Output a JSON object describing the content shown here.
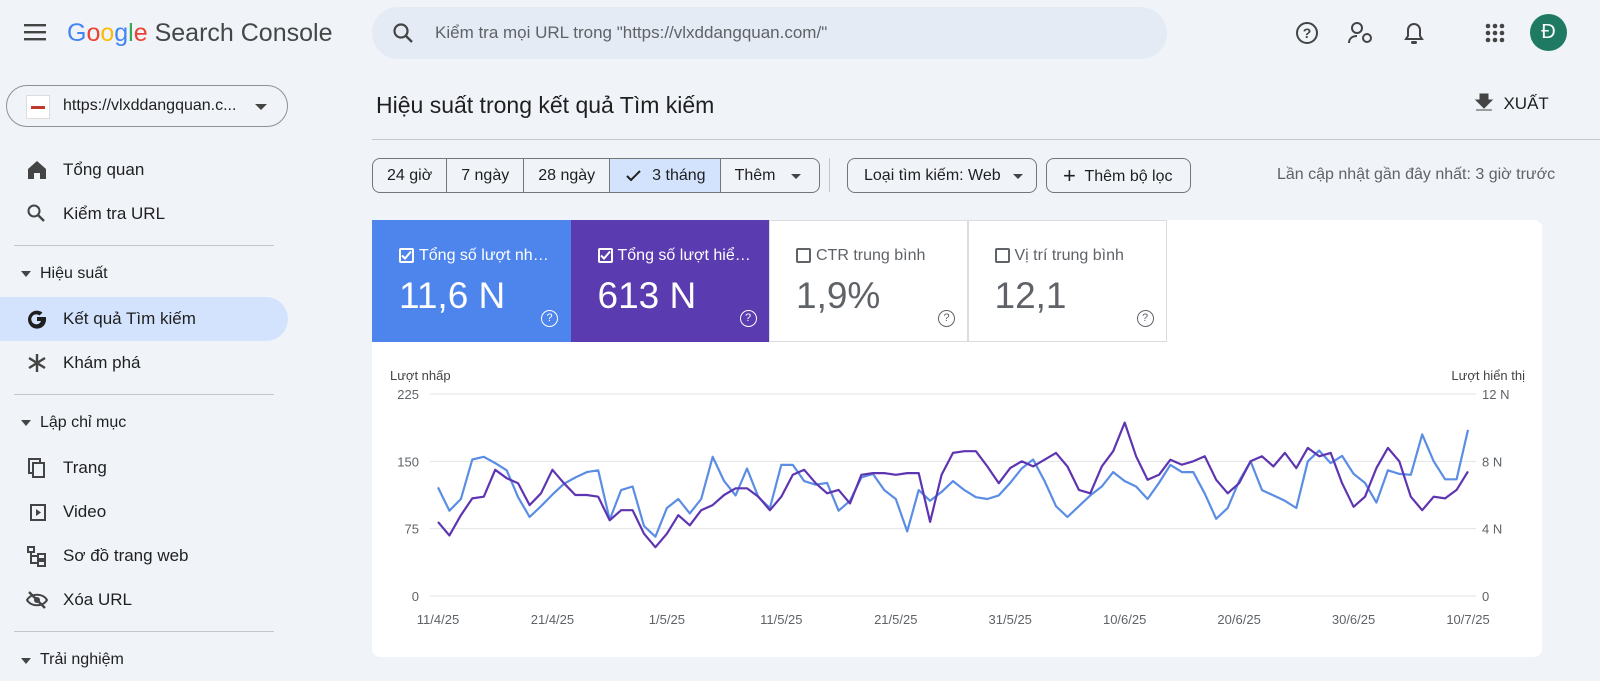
{
  "header": {
    "brand": "Google",
    "product": "Search Console",
    "search_placeholder": "Kiểm tra mọi URL trong \"https://vlxddangquan.com/\"",
    "avatar": "Đ"
  },
  "sidebar": {
    "property": "https://vlxddangquan.c...",
    "top_items": [
      "Tổng quan",
      "Kiểm tra URL"
    ],
    "sections": [
      {
        "title": "Hiệu suất",
        "items": [
          "Kết quả Tìm kiếm",
          "Khám phá"
        ]
      },
      {
        "title": "Lập chỉ mục",
        "items": [
          "Trang",
          "Video",
          "Sơ đồ trang web",
          "Xóa URL"
        ]
      },
      {
        "title": "Trải nghiệm"
      }
    ]
  },
  "page": {
    "title": "Hiệu suất trong kết quả Tìm kiếm",
    "export": "XUẤT",
    "date_ranges": [
      "24 giờ",
      "7 ngày",
      "28 ngày",
      "3 tháng"
    ],
    "more": "Thêm",
    "search_type": "Loại tìm kiếm: Web",
    "add_filter": "Thêm bộ lọc",
    "last_updated": "Lần cập nhật gần đây nhất: 3 giờ trước"
  },
  "metrics": [
    {
      "label": "Tổng số lượt nh…",
      "value": "11,6 N"
    },
    {
      "label": "Tổng số lượt hiể…",
      "value": "613 N"
    },
    {
      "label": "CTR trung bình",
      "value": "1,9%"
    },
    {
      "label": "Vị trí trung bình",
      "value": "12,1"
    }
  ],
  "chart_data": {
    "type": "line",
    "y_label": "Lượt nhấp",
    "y2_label": "Lượt hiển thị",
    "categories": [
      "11/4/25",
      null,
      null,
      null,
      null,
      null,
      null,
      null,
      null,
      null,
      "21/4/25",
      null,
      null,
      null,
      null,
      null,
      null,
      null,
      null,
      null,
      "1/5/25",
      null,
      null,
      null,
      null,
      null,
      null,
      null,
      null,
      null,
      "11/5/25",
      null,
      null,
      null,
      null,
      null,
      null,
      null,
      null,
      null,
      "21/5/25",
      null,
      null,
      null,
      null,
      null,
      null,
      null,
      null,
      null,
      "31/5/25",
      null,
      null,
      null,
      null,
      null,
      null,
      null,
      null,
      null,
      "10/6/25",
      null,
      null,
      null,
      null,
      null,
      null,
      null,
      null,
      null,
      "20/6/25",
      null,
      null,
      null,
      null,
      null,
      null,
      null,
      null,
      null,
      "30/6/25",
      null,
      null,
      null,
      null,
      null,
      null,
      null,
      null,
      null,
      "10/7/25"
    ],
    "series": [
      {
        "name": "Lượt nhấp",
        "color": "#5b8de4",
        "values": [
          121,
          95,
          108,
          152,
          155,
          148,
          140,
          110,
          88,
          100,
          113,
          125,
          132,
          138,
          140,
          85,
          118,
          122,
          78,
          66,
          98,
          108,
          92,
          108,
          155,
          128,
          112,
          142,
          110,
          98,
          146,
          146,
          128,
          124,
          126,
          95,
          106,
          132,
          136,
          118,
          108,
          72,
          118,
          106,
          116,
          128,
          118,
          110,
          108,
          112,
          126,
          142,
          152,
          128,
          100,
          88,
          100,
          112,
          122,
          138,
          128,
          122,
          108,
          126,
          146,
          138,
          138,
          114,
          86,
          98,
          128,
          150,
          118,
          112,
          106,
          98,
          150,
          162,
          148,
          156,
          136,
          126,
          104,
          140,
          136,
          135,
          180,
          150,
          130,
          130,
          185
        ]
      },
      {
        "name": "Lượt hiển thị",
        "color": "#5e35b1",
        "axis": "y2",
        "values": [
          4.4,
          3.6,
          4.8,
          5.8,
          5.9,
          7.5,
          7.0,
          6.7,
          5.4,
          6.1,
          7.5,
          6.7,
          6.0,
          6.0,
          5.9,
          4.5,
          5.1,
          5.1,
          3.7,
          2.9,
          3.7,
          4.8,
          4.2,
          5.1,
          5.4,
          6.0,
          6.4,
          6.4,
          5.9,
          5.1,
          5.9,
          7.2,
          7.5,
          6.7,
          6.1,
          6.3,
          5.5,
          7.2,
          7.3,
          7.3,
          7.2,
          7.3,
          7.3,
          4.4,
          7.2,
          8.5,
          8.6,
          8.6,
          7.7,
          6.7,
          7.6,
          8.0,
          7.7,
          8.1,
          8.5,
          7.7,
          6.3,
          6.1,
          7.7,
          8.6,
          10.3,
          8.3,
          6.9,
          7.2,
          8.1,
          7.8,
          8.0,
          8.3,
          6.9,
          6.1,
          6.7,
          8.0,
          8.3,
          7.7,
          8.5,
          7.6,
          8.8,
          8.3,
          8.5,
          6.7,
          5.3,
          5.9,
          7.6,
          8.8,
          8.0,
          5.9,
          5.1,
          5.9,
          5.8,
          6.3,
          7.4
        ]
      }
    ],
    "ylim": [
      0,
      225
    ],
    "yticks": [
      0,
      75,
      150,
      225
    ],
    "y2lim": [
      0,
      12
    ],
    "y2ticks": [
      0,
      {
        "value": 4,
        "label": "4 N"
      },
      {
        "value": 8,
        "label": "8 N"
      },
      {
        "value": 12,
        "label": "12 N"
      }
    ],
    "grid": true
  }
}
